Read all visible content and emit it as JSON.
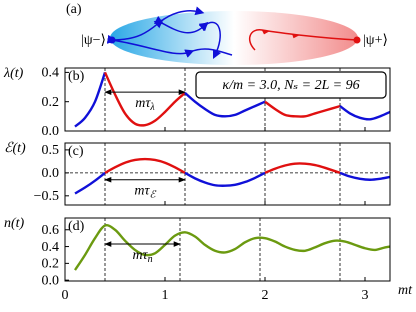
{
  "diagram": {
    "label": "(a)",
    "left_state": "|ψ−⟩",
    "right_state": "|ψ+⟩"
  },
  "chart_data": [
    {
      "type": "line",
      "panel": "(b)",
      "ylabel": "λ(t)",
      "xlim": [
        0,
        3.25
      ],
      "ylim": [
        0,
        0.43
      ],
      "xticks": [
        0,
        1,
        2,
        3
      ],
      "yticks": [
        {
          "value": 0,
          "label": "0.0"
        },
        {
          "value": 0.2,
          "label": "0.2"
        },
        {
          "value": 0.4,
          "label": "0.4"
        }
      ],
      "vlines": [
        0.4,
        1.2,
        2.0,
        2.75
      ],
      "box": "κ/m = 3.0, Nₛ = 2L = 96",
      "annotation": {
        "text": "mτ",
        "sub": "λ",
        "x": [
          0.4,
          1.2
        ],
        "y": 0.265
      },
      "series": [
        {
          "color": "#1010d8",
          "x": [
            0.1,
            0.2,
            0.3,
            0.4
          ],
          "values": [
            0.03,
            0.09,
            0.2,
            0.4
          ]
        },
        {
          "color": "#e01010",
          "x": [
            0.4,
            0.5,
            0.6,
            0.7,
            0.8,
            0.9,
            1.0,
            1.1,
            1.2
          ],
          "values": [
            0.4,
            0.25,
            0.12,
            0.05,
            0.04,
            0.07,
            0.13,
            0.2,
            0.26
          ]
        },
        {
          "color": "#1010d8",
          "x": [
            1.2,
            1.3,
            1.4,
            1.5,
            1.6,
            1.7,
            1.8,
            1.9,
            2.0
          ],
          "values": [
            0.26,
            0.2,
            0.15,
            0.11,
            0.1,
            0.11,
            0.14,
            0.17,
            0.2
          ]
        },
        {
          "color": "#e01010",
          "x": [
            2.0,
            2.1,
            2.2,
            2.3,
            2.4,
            2.5,
            2.6,
            2.75
          ],
          "values": [
            0.2,
            0.15,
            0.11,
            0.1,
            0.1,
            0.12,
            0.14,
            0.17
          ]
        },
        {
          "color": "#1010d8",
          "x": [
            2.75,
            2.85,
            2.95,
            3.05,
            3.15,
            3.25
          ],
          "values": [
            0.17,
            0.12,
            0.09,
            0.08,
            0.1,
            0.13
          ]
        }
      ]
    },
    {
      "type": "line",
      "panel": "(c)",
      "ylabel": "ℰ(t)",
      "xlim": [
        0,
        3.25
      ],
      "ylim": [
        -0.7,
        0.65
      ],
      "xticks": [
        0,
        1,
        2,
        3
      ],
      "yticks": [
        {
          "value": -0.5,
          "label": "−0.5"
        },
        {
          "value": 0,
          "label": "0.0"
        },
        {
          "value": 0.5,
          "label": "0.5"
        }
      ],
      "vlines": [
        0.4,
        1.2,
        2.0,
        2.75
      ],
      "hline": 0,
      "annotation": {
        "text": "mτ",
        "sub": "ℰ",
        "x": [
          0.4,
          1.2
        ],
        "y": -0.15
      },
      "series": [
        {
          "color": "#1010d8",
          "x": [
            0.1,
            0.2,
            0.3,
            0.4
          ],
          "values": [
            -0.45,
            -0.32,
            -0.17,
            0
          ]
        },
        {
          "color": "#e01010",
          "x": [
            0.4,
            0.5,
            0.6,
            0.7,
            0.8,
            0.9,
            1.0,
            1.1,
            1.2
          ],
          "values": [
            0,
            0.12,
            0.22,
            0.28,
            0.3,
            0.28,
            0.22,
            0.12,
            0
          ]
        },
        {
          "color": "#1010d8",
          "x": [
            1.2,
            1.3,
            1.4,
            1.5,
            1.6,
            1.7,
            1.8,
            1.9,
            2.0
          ],
          "values": [
            0,
            -0.12,
            -0.21,
            -0.27,
            -0.28,
            -0.26,
            -0.2,
            -0.11,
            0
          ]
        },
        {
          "color": "#e01010",
          "x": [
            2.0,
            2.1,
            2.2,
            2.3,
            2.4,
            2.5,
            2.6,
            2.75
          ],
          "values": [
            0,
            0.09,
            0.16,
            0.2,
            0.2,
            0.17,
            0.11,
            0
          ]
        },
        {
          "color": "#1010d8",
          "x": [
            2.75,
            2.85,
            2.95,
            3.05,
            3.15,
            3.25
          ],
          "values": [
            0,
            -0.08,
            -0.13,
            -0.15,
            -0.13,
            -0.09
          ]
        }
      ]
    },
    {
      "type": "line",
      "panel": "(d)",
      "ylabel": "n(t)",
      "xlabel": "mt",
      "xlim": [
        0,
        3.25
      ],
      "ylim": [
        -0.01,
        0.74
      ],
      "xticks": [
        0,
        1,
        2,
        3
      ],
      "yticks": [
        {
          "value": 0,
          "label": "0.0"
        },
        {
          "value": 0.2,
          "label": "0.2"
        },
        {
          "value": 0.4,
          "label": "0.4"
        },
        {
          "value": 0.6,
          "label": "0.6"
        }
      ],
      "vlines": [
        0.4,
        1.15,
        1.95,
        2.75
      ],
      "annotation": {
        "text": "mτ",
        "sub": "n",
        "x": [
          0.4,
          1.15
        ],
        "y": 0.43
      },
      "series": [
        {
          "color": "#6b9a10",
          "x": [
            0.1,
            0.2,
            0.3,
            0.4,
            0.5,
            0.6,
            0.7,
            0.8,
            0.9,
            1.0,
            1.1,
            1.2,
            1.3,
            1.4,
            1.5,
            1.6,
            1.7,
            1.8,
            1.9,
            2.0,
            2.1,
            2.2,
            2.3,
            2.4,
            2.5,
            2.6,
            2.7,
            2.8,
            2.9,
            3.0,
            3.1,
            3.2,
            3.25
          ],
          "values": [
            0.12,
            0.3,
            0.5,
            0.65,
            0.6,
            0.47,
            0.36,
            0.3,
            0.32,
            0.42,
            0.53,
            0.57,
            0.52,
            0.42,
            0.35,
            0.33,
            0.37,
            0.45,
            0.5,
            0.5,
            0.46,
            0.4,
            0.36,
            0.35,
            0.39,
            0.44,
            0.47,
            0.46,
            0.42,
            0.38,
            0.36,
            0.39,
            0.4
          ]
        }
      ]
    }
  ]
}
